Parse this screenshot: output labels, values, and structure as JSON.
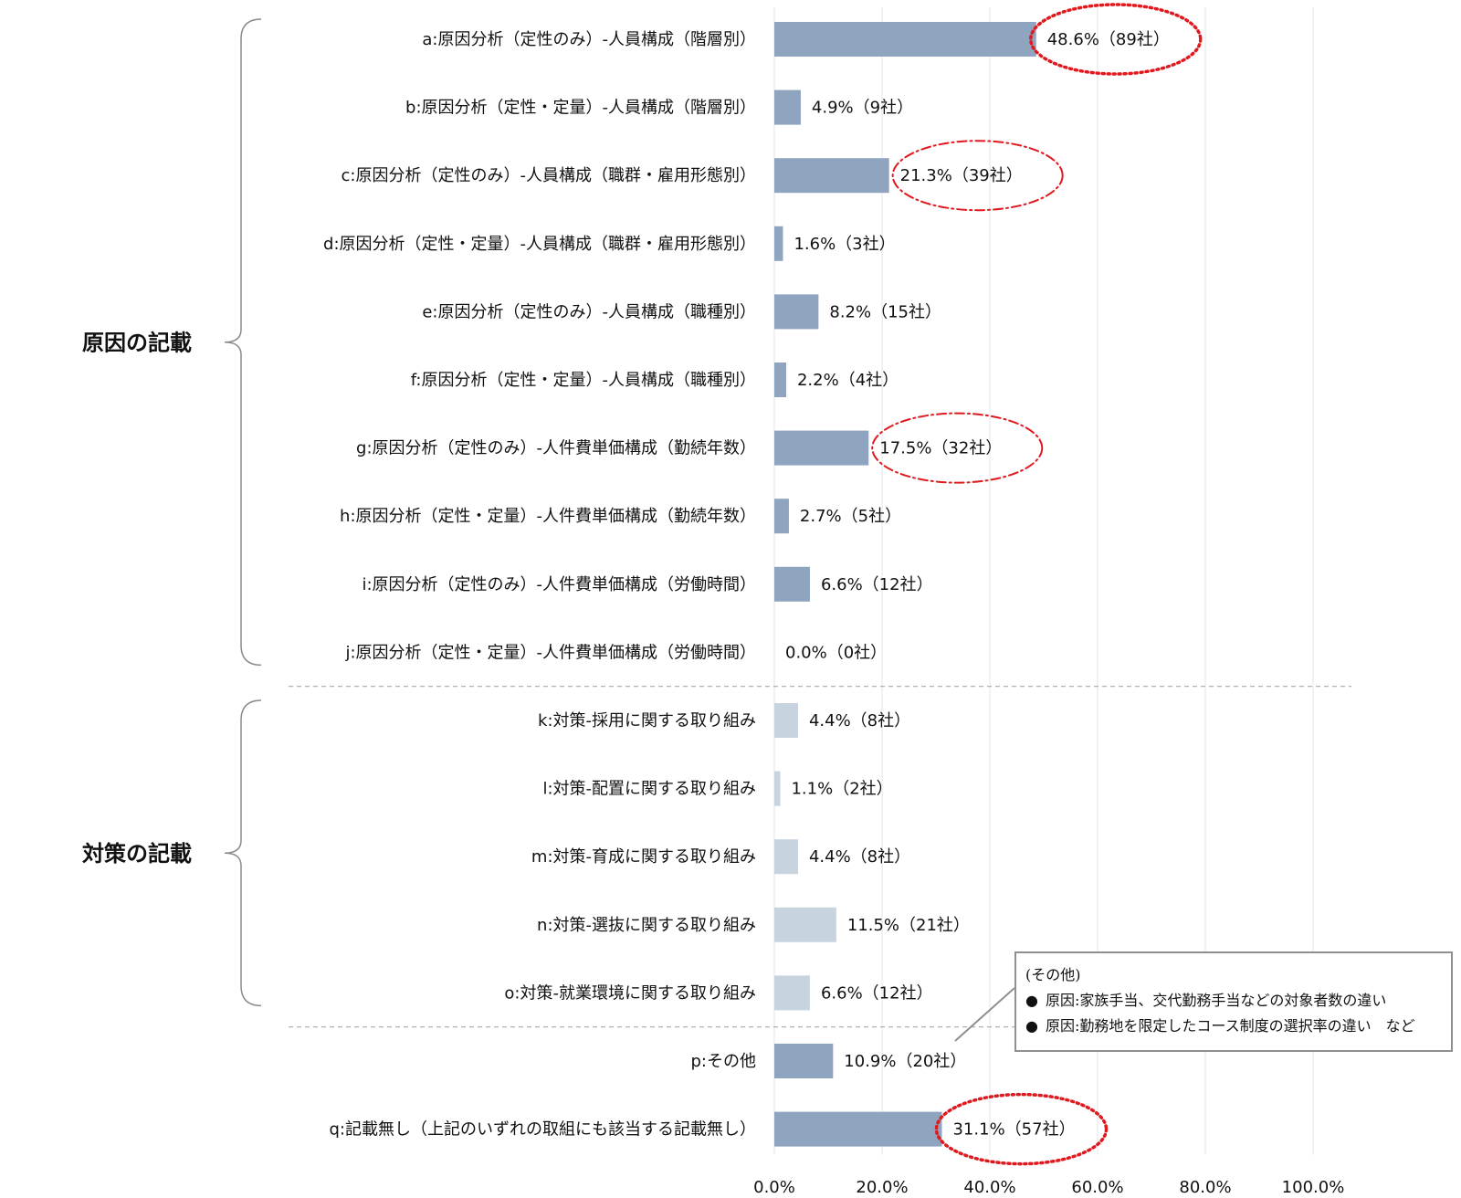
{
  "chart_data": {
    "type": "bar",
    "orientation": "horizontal",
    "xlim": [
      0,
      100
    ],
    "x_ticks": [
      "0.0%",
      "20.0%",
      "40.0%",
      "60.0%",
      "80.0%",
      "100.0%"
    ],
    "x_tick_values": [
      0,
      20,
      40,
      60,
      80,
      100
    ],
    "grid": true,
    "categories": [
      "a:原因分析（定性のみ）-人員構成（階層別）",
      "b:原因分析（定性・定量）-人員構成（階層別）",
      "c:原因分析（定性のみ）-人員構成（職群・雇用形態別）",
      "d:原因分析（定性・定量）-人員構成（職群・雇用形態別）",
      "e:原因分析（定性のみ）-人員構成（職種別）",
      "f:原因分析（定性・定量）-人員構成（職種別）",
      "g:原因分析（定性のみ）-人件費単価構成（勤続年数）",
      "h:原因分析（定性・定量）-人件費単価構成（勤続年数）",
      "i:原因分析（定性のみ）-人件費単価構成（労働時間）",
      "j:原因分析（定性・定量）-人件費単価構成（労働時間）",
      "k:対策-採用に関する取り組み",
      "l:対策-配置に関する取り組み",
      "m:対策-育成に関する取り組み",
      "n:対策-選抜に関する取り組み",
      "o:対策-就業環境に関する取り組み",
      "p:その他",
      "q:記載無し（上記のいずれの取組にも該当する記載無し）"
    ],
    "values": [
      48.6,
      4.9,
      21.3,
      1.6,
      8.2,
      2.2,
      17.5,
      2.7,
      6.6,
      0.0,
      4.4,
      1.1,
      4.4,
      11.5,
      6.6,
      10.9,
      31.1
    ],
    "value_labels": [
      "48.6%（89社）",
      "4.9%（9社）",
      "21.3%（39社）",
      "1.6%（3社）",
      "8.2%（15社）",
      "2.2%（4社）",
      "17.5%（32社）",
      "2.7%（5社）",
      "6.6%（12社）",
      "0.0%（0社）",
      "4.4%（8社）",
      "1.1%（2社）",
      "4.4%（8社）",
      "11.5%（21社）",
      "6.6%（12社）",
      "10.9%（20社）",
      "31.1%（57社）"
    ],
    "groups": [
      {
        "label": "原因の記載",
        "from": 0,
        "to": 9,
        "color": "#8ea4bf"
      },
      {
        "label": "対策の記載",
        "from": 10,
        "to": 14,
        "color": "#c7d3df"
      },
      {
        "label": "",
        "from": 15,
        "to": 16,
        "color": "#8ea4bf"
      }
    ],
    "highlighted": [
      0,
      2,
      6,
      16
    ],
    "highlight_color": "#e0191f"
  },
  "callout": {
    "title": "(その他)",
    "items": [
      "原因:家族手当、交代勤務手当などの対象者数の違い",
      "原因:勤務地を限定したコース制度の選択率の違い　など"
    ]
  }
}
